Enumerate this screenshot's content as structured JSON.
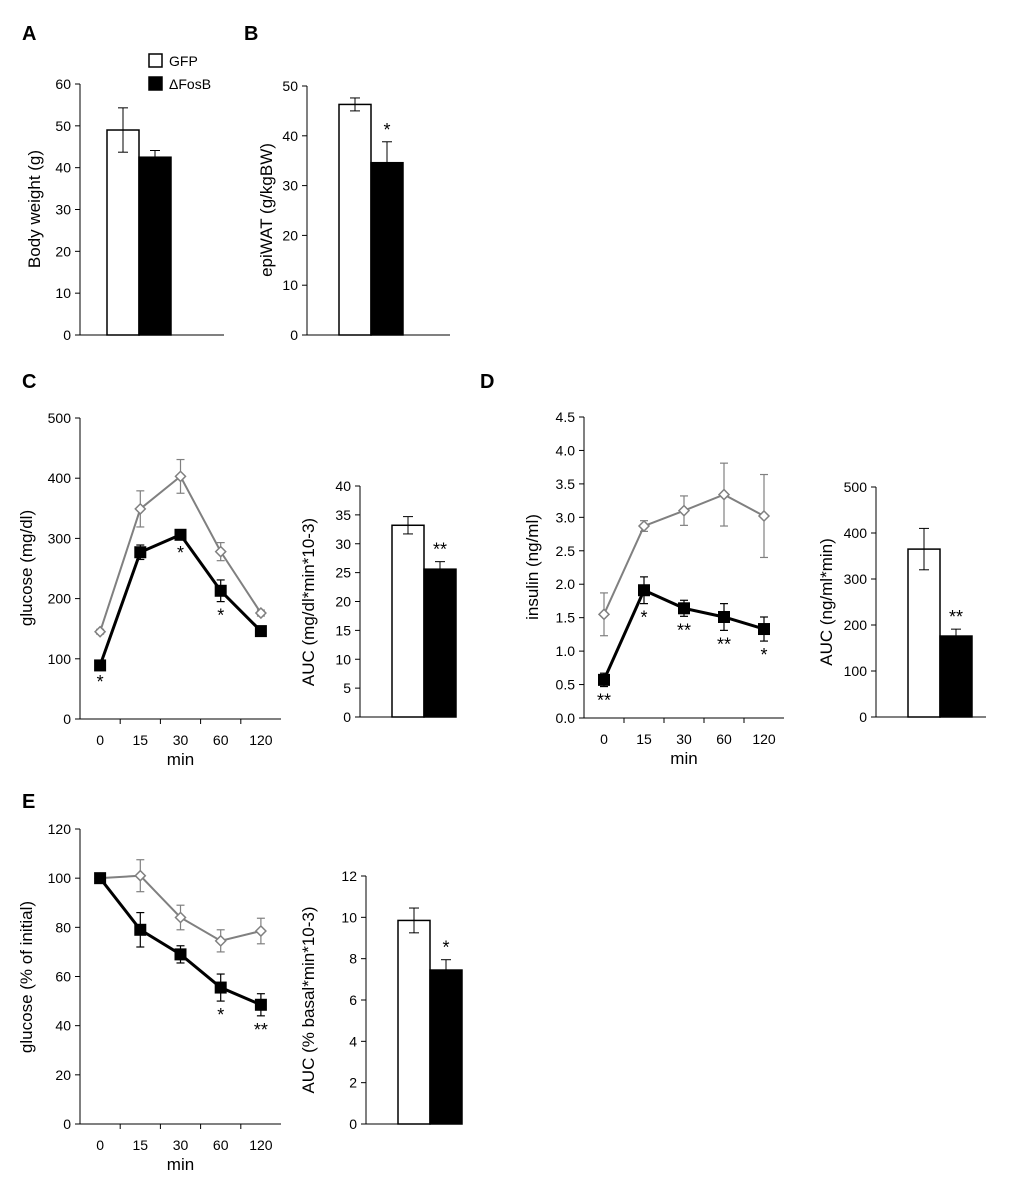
{
  "legend": {
    "gfp_label": "GFP",
    "fosb_label": "ΔFosB",
    "position": "top"
  },
  "colors": {
    "gfp_bar": "#ffffff",
    "fosb_bar": "#000000",
    "gfp_line": "#808080",
    "fosb_line": "#000000",
    "axis": "#000000"
  },
  "panel_labels": {
    "A": "A",
    "B": "B",
    "C": "C",
    "D": "D",
    "E": "E"
  },
  "chart_data": [
    {
      "id": "A",
      "type": "bar",
      "ylabel": "Body weight (g)",
      "ylim": [
        0,
        60
      ],
      "yticks": [
        0,
        10,
        20,
        30,
        40,
        50,
        60
      ],
      "series": [
        {
          "name": "GFP",
          "values": [
            49
          ],
          "errors": [
            5.3
          ]
        },
        {
          "name": "ΔFosB",
          "values": [
            42.5
          ],
          "errors": [
            1.6
          ]
        }
      ],
      "annotations": []
    },
    {
      "id": "B",
      "type": "bar",
      "ylabel": "epiWAT (g/kgBW)",
      "ylim": [
        0,
        50
      ],
      "yticks": [
        0,
        10,
        20,
        30,
        40,
        50
      ],
      "series": [
        {
          "name": "GFP",
          "values": [
            46.3
          ],
          "errors": [
            1.3
          ]
        },
        {
          "name": "ΔFosB",
          "values": [
            34.6
          ],
          "errors": [
            4.2
          ]
        }
      ],
      "annotations": [
        "*"
      ]
    },
    {
      "id": "C-line",
      "type": "line",
      "xlabel": "min",
      "ylabel": "glucose (mg/dl)",
      "ylim": [
        0,
        500
      ],
      "yticks": [
        0,
        100,
        200,
        300,
        400,
        500
      ],
      "categories": [
        "0",
        "15",
        "30",
        "60",
        "120"
      ],
      "series": [
        {
          "name": "GFP",
          "values": [
            145,
            349,
            403,
            278,
            176
          ],
          "errors": [
            4,
            30,
            28,
            15,
            5
          ]
        },
        {
          "name": "ΔFosB",
          "values": [
            89,
            277,
            306,
            213,
            146
          ],
          "errors": [
            4,
            12,
            7,
            18,
            5
          ]
        }
      ],
      "annotations": [
        "*",
        "",
        "*",
        "*",
        ""
      ]
    },
    {
      "id": "C-auc",
      "type": "bar",
      "ylabel": "AUC (mg/dl*min*10-3)",
      "ylim": [
        0,
        40
      ],
      "yticks": [
        0,
        5,
        10,
        15,
        20,
        25,
        30,
        35,
        40
      ],
      "series": [
        {
          "name": "GFP",
          "values": [
            33.2
          ],
          "errors": [
            1.5
          ]
        },
        {
          "name": "ΔFosB",
          "values": [
            25.6
          ],
          "errors": [
            1.3
          ]
        }
      ],
      "annotations": [
        "**"
      ]
    },
    {
      "id": "D-line",
      "type": "line",
      "xlabel": "min",
      "ylabel": "insulin (ng/ml)",
      "ylim": [
        0,
        4.5
      ],
      "yticks": [
        "0.0",
        "0.5",
        "1.0",
        "1.5",
        "2.0",
        "2.5",
        "3.0",
        "3.5",
        "4.0",
        "4.5"
      ],
      "categories": [
        "0",
        "15",
        "30",
        "60",
        "120"
      ],
      "series": [
        {
          "name": "GFP",
          "values": [
            1.55,
            2.87,
            3.1,
            3.34,
            3.02
          ],
          "errors": [
            0.32,
            0.08,
            0.22,
            0.47,
            0.62
          ]
        },
        {
          "name": "ΔFosB",
          "values": [
            0.57,
            1.91,
            1.64,
            1.51,
            1.33
          ],
          "errors": [
            0.1,
            0.2,
            0.12,
            0.2,
            0.18
          ]
        }
      ],
      "annotations": [
        "**",
        "*",
        "**",
        "**",
        "*"
      ]
    },
    {
      "id": "D-auc",
      "type": "bar",
      "ylabel": "AUC (ng/ml*min)",
      "ylim": [
        0,
        500
      ],
      "yticks": [
        0,
        100,
        200,
        300,
        400,
        500
      ],
      "series": [
        {
          "name": "GFP",
          "values": [
            365
          ],
          "errors": [
            45
          ]
        },
        {
          "name": "ΔFosB",
          "values": [
            176
          ],
          "errors": [
            15
          ]
        }
      ],
      "annotations": [
        "**"
      ]
    },
    {
      "id": "E-line",
      "type": "line",
      "xlabel": "min",
      "ylabel": "glucose (% of initial)",
      "ylim": [
        0,
        120
      ],
      "yticks": [
        0,
        20,
        40,
        60,
        80,
        100,
        120
      ],
      "categories": [
        "0",
        "15",
        "30",
        "60",
        "120"
      ],
      "series": [
        {
          "name": "GFP",
          "values": [
            100,
            101,
            84,
            74.5,
            78.5
          ],
          "errors": [
            0.5,
            6.5,
            5,
            4.5,
            5.2
          ]
        },
        {
          "name": "ΔFosB",
          "values": [
            100,
            79,
            69,
            55.5,
            48.5
          ],
          "errors": [
            0.5,
            7,
            3.5,
            5.5,
            4.5
          ]
        }
      ],
      "annotations": [
        "",
        "",
        "",
        "*",
        "**"
      ]
    },
    {
      "id": "E-auc",
      "type": "bar",
      "ylabel": "AUC (% basal*min*10-3)",
      "ylim": [
        0,
        12
      ],
      "yticks": [
        0,
        2,
        4,
        6,
        8,
        10,
        12
      ],
      "series": [
        {
          "name": "GFP",
          "values": [
            9.85
          ],
          "errors": [
            0.6
          ]
        },
        {
          "name": "ΔFosB",
          "values": [
            7.45
          ],
          "errors": [
            0.5
          ]
        }
      ],
      "annotations": [
        "*"
      ]
    }
  ]
}
